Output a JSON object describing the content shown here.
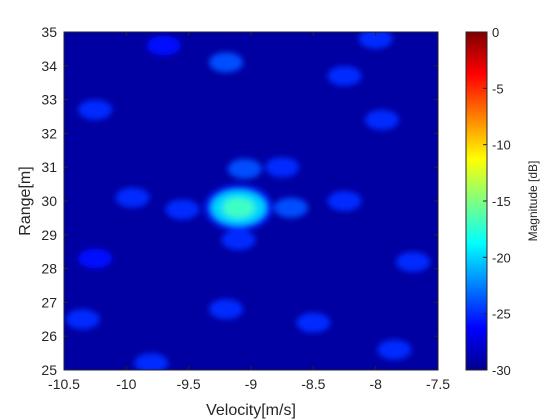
{
  "chart_data": {
    "type": "heatmap",
    "title": "",
    "xlabel": "Velocity[m/s]",
    "ylabel": "Range[m]",
    "xlim": [
      -10.5,
      -7.5
    ],
    "ylim": [
      25,
      35
    ],
    "x_ticks": [
      -10.5,
      -10,
      -9.5,
      -9,
      -8.5,
      -8,
      -7.5
    ],
    "x_tick_labels": [
      "-10.5",
      "-10",
      "-9.5",
      "-9",
      "-8.5",
      "-8",
      "-7.5"
    ],
    "y_ticks": [
      25,
      26,
      27,
      28,
      29,
      30,
      31,
      32,
      33,
      34,
      35
    ],
    "y_tick_labels": [
      "25",
      "26",
      "27",
      "28",
      "29",
      "30",
      "31",
      "32",
      "33",
      "34",
      "35"
    ],
    "colorbar": {
      "label": "Magnitude [dB]",
      "range": [
        -30,
        0
      ],
      "ticks": [
        0,
        -5,
        -10,
        -15,
        -20,
        -25,
        -30
      ],
      "tick_labels": [
        "0",
        "-5",
        "-10",
        "-15",
        "-20",
        "-25",
        "-30"
      ],
      "colormap": "jet"
    },
    "peak": {
      "velocity": -9.1,
      "range": 29.8,
      "magnitude_db": -17
    },
    "sidelobes": [
      {
        "velocity": -9.05,
        "range": 30.95,
        "magnitude_db": -24
      },
      {
        "velocity": -8.68,
        "range": 29.8,
        "magnitude_db": -24
      },
      {
        "velocity": -9.55,
        "range": 29.75,
        "magnitude_db": -25
      },
      {
        "velocity": -9.1,
        "range": 28.85,
        "magnitude_db": -25
      },
      {
        "velocity": -9.2,
        "range": 34.1,
        "magnitude_db": -24
      },
      {
        "velocity": -8.25,
        "range": 33.7,
        "magnitude_db": -25
      },
      {
        "velocity": -10.25,
        "range": 32.7,
        "magnitude_db": -25
      },
      {
        "velocity": -9.95,
        "range": 30.1,
        "magnitude_db": -25
      },
      {
        "velocity": -8.75,
        "range": 31.0,
        "magnitude_db": -25
      },
      {
        "velocity": -8.25,
        "range": 30.0,
        "magnitude_db": -25
      },
      {
        "velocity": -7.95,
        "range": 32.4,
        "magnitude_db": -25
      },
      {
        "velocity": -7.7,
        "range": 28.2,
        "magnitude_db": -25
      },
      {
        "velocity": -9.2,
        "range": 26.8,
        "magnitude_db": -25
      },
      {
        "velocity": -8.5,
        "range": 26.4,
        "magnitude_db": -25
      },
      {
        "velocity": -10.35,
        "range": 26.5,
        "magnitude_db": -25
      },
      {
        "velocity": -9.8,
        "range": 25.2,
        "magnitude_db": -25
      },
      {
        "velocity": -7.85,
        "range": 25.6,
        "magnitude_db": -25
      },
      {
        "velocity": -10.25,
        "range": 28.3,
        "magnitude_db": -26
      },
      {
        "velocity": -8.0,
        "range": 34.8,
        "magnitude_db": -25
      },
      {
        "velocity": -9.7,
        "range": 34.6,
        "magnitude_db": -26
      }
    ],
    "noise_floor_db": -29
  }
}
